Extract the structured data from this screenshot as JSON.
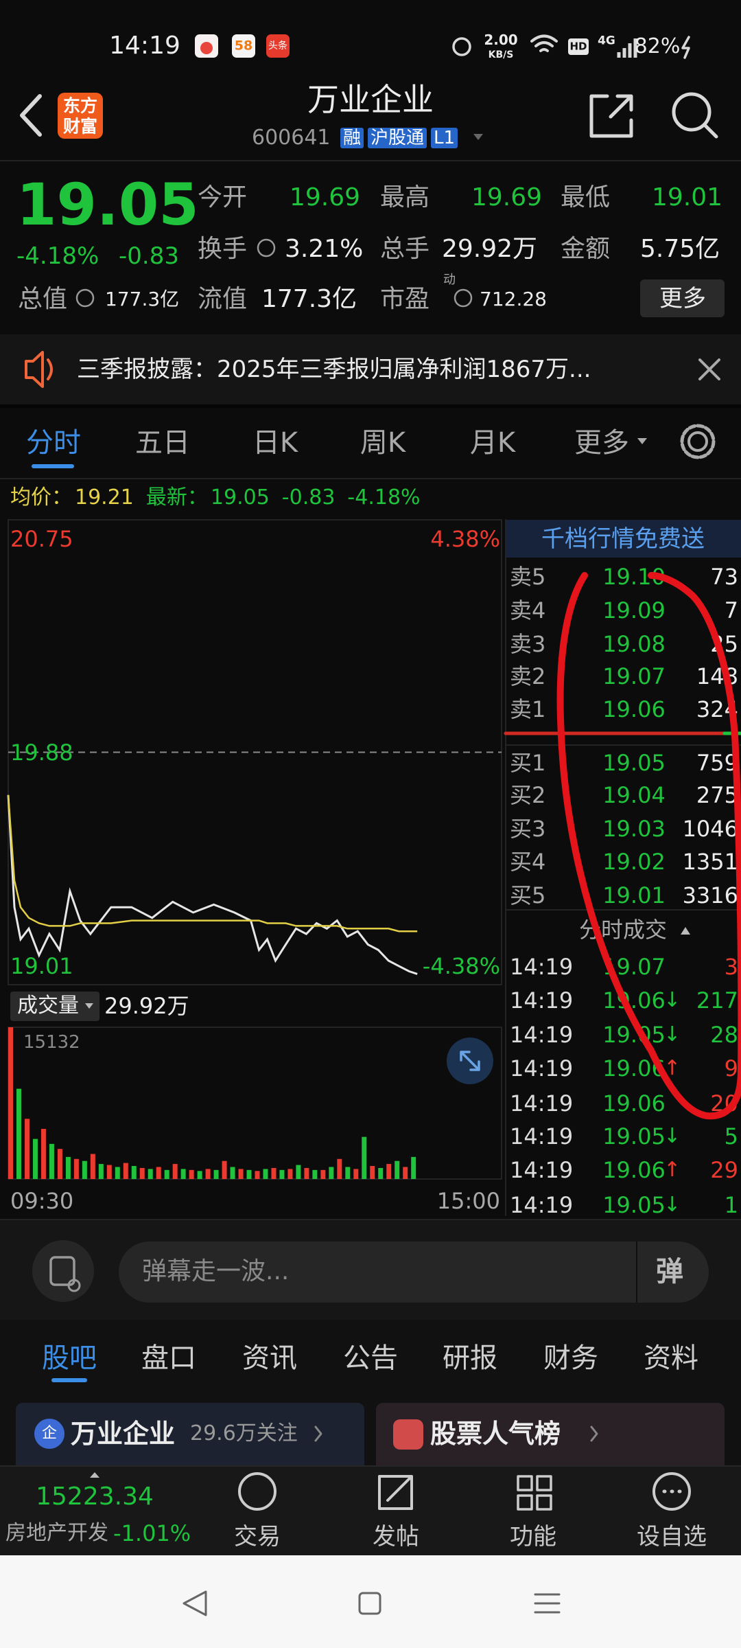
{
  "status_bar": {
    "time": "14:19",
    "app_icons": [
      "58",
      "头条"
    ],
    "speed_value": "2.00",
    "speed_unit": "KB/S",
    "hd": "HD",
    "network": "4G",
    "battery": "82%"
  },
  "header": {
    "logo": [
      "东方",
      "财富"
    ],
    "title": "万业企业",
    "code": "600641",
    "tags": [
      "融",
      "沪股通",
      "L1"
    ]
  },
  "quote": {
    "price": "19.05",
    "change_pct": "-4.18%",
    "change": "-0.83",
    "fields": [
      {
        "label": "今开",
        "value": "19.69"
      },
      {
        "label": "最高",
        "value": "19.69"
      },
      {
        "label": "最低",
        "value": "19.01"
      },
      {
        "label": "换手",
        "value": "3.21%"
      },
      {
        "label": "总手",
        "value": "29.92万"
      },
      {
        "label": "金额",
        "value": "5.75亿"
      },
      {
        "label": "总值",
        "value": "177.3亿"
      },
      {
        "label": "流值",
        "value": "177.3亿"
      },
      {
        "label": "市盈",
        "superscript": "动",
        "value": "712.28"
      }
    ],
    "more": "更多"
  },
  "notice": {
    "text": "三季报披露：2025年三季报归属净利润1867万..."
  },
  "tabs": [
    "分时",
    "五日",
    "日K",
    "周K",
    "月K",
    "更多"
  ],
  "intraday": {
    "avg_label": "均价：",
    "avg": "19.21",
    "last_label": "最新：",
    "last": "19.05",
    "change": "-0.83",
    "change_pct": "-4.18%",
    "chart": {
      "type": "line",
      "x": [
        0,
        3,
        6,
        10,
        15,
        20,
        25,
        30,
        35,
        40,
        50,
        60,
        70,
        80,
        90,
        100,
        110,
        118,
        122,
        126,
        130,
        135,
        140,
        145,
        150,
        155,
        160,
        165,
        170,
        175,
        180,
        185,
        190,
        195,
        199
      ],
      "xlim": [
        0,
        240
      ],
      "xticks": [
        {
          "value": 0,
          "label": "09:30"
        },
        {
          "value": 240,
          "label": "15:00"
        }
      ],
      "ylim": [
        19.01,
        20.75
      ],
      "yticks": [
        20.75,
        19.88,
        19.01
      ],
      "y2lim": [
        -4.38,
        4.38
      ],
      "y2ticks": [
        {
          "value": 4.38,
          "label": "4.38%"
        },
        {
          "value": -4.38,
          "label": "-4.38%"
        }
      ],
      "series": [
        {
          "color": "#e6e6e6",
          "values": [
            19.72,
            19.3,
            19.18,
            19.22,
            19.12,
            19.2,
            19.14,
            19.36,
            19.25,
            19.2,
            19.3,
            19.3,
            19.26,
            19.32,
            19.28,
            19.31,
            19.28,
            19.25,
            19.14,
            19.18,
            19.1,
            19.16,
            19.22,
            19.2,
            19.24,
            19.22,
            19.25,
            19.19,
            19.21,
            19.16,
            19.14,
            19.1,
            19.08,
            19.06,
            19.05
          ]
        },
        {
          "color": "#e3cf45",
          "values": [
            19.72,
            19.4,
            19.3,
            19.26,
            19.24,
            19.23,
            19.23,
            19.23,
            19.24,
            19.24,
            19.24,
            19.25,
            19.25,
            19.25,
            19.25,
            19.25,
            19.25,
            19.25,
            19.25,
            19.24,
            19.24,
            19.24,
            19.23,
            19.23,
            19.23,
            19.23,
            19.23,
            19.22,
            19.22,
            19.22,
            19.22,
            19.22,
            19.21,
            19.21,
            19.21
          ]
        }
      ]
    },
    "volume": {
      "type": "bar",
      "label": "成交量",
      "total": "29.92万",
      "ylim": [
        0,
        15132
      ],
      "yticks": [
        15132
      ],
      "series": [
        {
          "color": "#ec3a2f",
          "x": [
            0,
            8,
            16,
            24,
            32,
            40,
            48,
            56,
            64,
            72,
            80,
            88,
            96,
            104,
            112,
            120,
            128,
            136,
            144,
            152,
            160,
            168,
            176,
            184,
            192
          ],
          "values": [
            15132,
            6000,
            5000,
            3000,
            2000,
            2500,
            1400,
            1600,
            1100,
            1200,
            1500,
            900,
            1000,
            1800,
            1000,
            800,
            1100,
            1000,
            1100,
            900,
            2000,
            1000,
            1300,
            1500,
            1200
          ]
        },
        {
          "color": "#1fc33c",
          "x": [
            4,
            12,
            20,
            28,
            36,
            44,
            52,
            60,
            68,
            76,
            84,
            92,
            100,
            108,
            116,
            124,
            132,
            140,
            148,
            156,
            164,
            172,
            180,
            188,
            196
          ],
          "values": [
            9000,
            4000,
            3500,
            2200,
            1800,
            1500,
            1200,
            1300,
            1000,
            900,
            1000,
            800,
            900,
            1200,
            900,
            1000,
            900,
            1400,
            900,
            1200,
            1200,
            4200,
            1100,
            1800,
            2200
          ]
        }
      ]
    }
  },
  "order_book": {
    "promo": "千档行情免费送",
    "asks": [
      {
        "label": "卖5",
        "price": "19.10",
        "volume": "73"
      },
      {
        "label": "卖4",
        "price": "19.09",
        "volume": "7"
      },
      {
        "label": "卖3",
        "price": "19.08",
        "volume": "25"
      },
      {
        "label": "卖2",
        "price": "19.07",
        "volume": "148"
      },
      {
        "label": "卖1",
        "price": "19.06",
        "volume": "324"
      }
    ],
    "bids": [
      {
        "label": "买1",
        "price": "19.05",
        "volume": "759"
      },
      {
        "label": "买2",
        "price": "19.04",
        "volume": "275"
      },
      {
        "label": "买3",
        "price": "19.03",
        "volume": "1046"
      },
      {
        "label": "买4",
        "price": "19.02",
        "volume": "1351"
      },
      {
        "label": "买5",
        "price": "19.01",
        "volume": "3316"
      }
    ]
  },
  "trades": {
    "title": "分时成交",
    "rows": [
      {
        "time": "14:19",
        "price": "19.07",
        "volume": "3",
        "color": "#ec3a2f"
      },
      {
        "time": "14:19",
        "price": "19.06",
        "arrow": "↓",
        "volume": "217",
        "color": "#1fc33c"
      },
      {
        "time": "14:19",
        "price": "19.05",
        "arrow": "↓",
        "volume": "28",
        "color": "#1fc33c"
      },
      {
        "time": "14:19",
        "price": "19.06",
        "arrow": "↑",
        "volume": "9",
        "color": "#ec3a2f"
      },
      {
        "time": "14:19",
        "price": "19.06",
        "volume": "20",
        "color": "#ec3a2f"
      },
      {
        "time": "14:19",
        "price": "19.05",
        "arrow": "↓",
        "volume": "5",
        "color": "#1fc33c"
      },
      {
        "time": "14:19",
        "price": "19.06",
        "arrow": "↑",
        "volume": "29",
        "color": "#ec3a2f"
      },
      {
        "time": "14:19",
        "price": "19.05",
        "arrow": "↓",
        "volume": "1",
        "color": "#1fc33c"
      }
    ]
  },
  "comment": {
    "placeholder": "弹幕走一波...",
    "button": "弹"
  },
  "section_tabs": [
    "股吧",
    "盘口",
    "资讯",
    "公告",
    "研报",
    "财务",
    "资料"
  ],
  "cards": [
    {
      "icon": "企",
      "title": "万业企业",
      "sub": "29.6万关注"
    },
    {
      "title": "股票人气榜"
    }
  ],
  "bottom_nav": {
    "index_value": "15223.34",
    "index_name": "房地产开发",
    "index_change": "-1.01%",
    "items": [
      "交易",
      "发帖",
      "功能",
      "设自选"
    ]
  }
}
